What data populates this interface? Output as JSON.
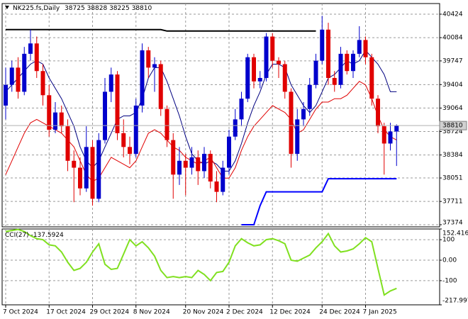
{
  "chart_data": [
    {
      "type": "candlestick",
      "title": "NK225.fs,Daily",
      "categories": [
        "7 Oct 2024",
        null,
        null,
        null,
        null,
        null,
        null,
        "17 Oct 2024",
        null,
        null,
        null,
        null,
        null,
        null,
        "29 Oct 2024",
        null,
        null,
        null,
        null,
        null,
        null,
        "8 Nov 2024",
        null,
        null,
        null,
        null,
        null,
        null,
        null,
        "20 Nov 2024",
        null,
        null,
        null,
        null,
        null,
        null,
        "2 Dec 2024",
        null,
        null,
        null,
        null,
        null,
        null,
        "12 Dec 2024",
        null,
        null,
        null,
        null,
        null,
        null,
        null,
        "24 Dec 2024",
        null,
        null,
        null,
        null,
        null,
        null,
        "7 Jan 2025",
        null,
        null,
        null,
        null,
        null
      ],
      "open": [
        39100,
        39400,
        39650,
        39300,
        39850,
        40000,
        39600,
        39250,
        38750,
        39000,
        38800,
        38300,
        38200,
        37900,
        38500,
        37750,
        38600,
        39300,
        39550,
        38700,
        38500,
        38400,
        39100,
        39900,
        39650,
        39700,
        39050,
        38600,
        38100,
        38300,
        38200,
        38350,
        38150,
        38400,
        38000,
        37850,
        38200,
        38650,
        38900,
        39200,
        39800,
        39450,
        39500,
        40100,
        39750,
        39700,
        39300,
        38400,
        38900,
        39050,
        39400,
        39750,
        40200,
        39500,
        39400,
        39850,
        39600,
        39850,
        40050,
        39800,
        39200,
        38800,
        38550,
        38725
      ],
      "high": [
        39650,
        39750,
        39800,
        39950,
        40200,
        40100,
        39700,
        39400,
        39150,
        39100,
        38900,
        38450,
        38350,
        38800,
        38600,
        38700,
        39500,
        39650,
        39600,
        38900,
        38650,
        39200,
        40000,
        39950,
        39800,
        39750,
        39100,
        38700,
        38500,
        38400,
        38500,
        38450,
        38500,
        38450,
        38150,
        38300,
        38750,
        39050,
        39300,
        39850,
        39850,
        39600,
        40150,
        40150,
        39800,
        39750,
        39350,
        39050,
        39150,
        39500,
        39850,
        40400,
        40300,
        39600,
        39950,
        39900,
        39900,
        40250,
        40100,
        39850,
        39250,
        38850,
        38850,
        38828
      ],
      "low": [
        38900,
        39300,
        39200,
        39250,
        39750,
        39500,
        39100,
        38650,
        38700,
        38700,
        38150,
        37700,
        37800,
        37850,
        37650,
        37700,
        38550,
        39150,
        38600,
        38350,
        38250,
        38350,
        39000,
        39500,
        39300,
        38950,
        38500,
        37750,
        37950,
        37800,
        38100,
        37950,
        38050,
        37900,
        37700,
        37800,
        38100,
        38600,
        38800,
        39150,
        39350,
        39350,
        39450,
        39650,
        39500,
        39200,
        38200,
        38300,
        38800,
        38950,
        39350,
        39700,
        39400,
        39300,
        39350,
        39550,
        39500,
        39800,
        39700,
        39100,
        38700,
        38100,
        38450,
        38225
      ],
      "close": [
        39400,
        39650,
        39300,
        39850,
        40000,
        39600,
        39250,
        38750,
        39000,
        38800,
        38300,
        38200,
        37900,
        38500,
        37750,
        38600,
        39300,
        39550,
        38700,
        38500,
        38400,
        39100,
        39900,
        39650,
        39700,
        39050,
        38600,
        38100,
        38300,
        38200,
        38350,
        38150,
        38400,
        38000,
        37850,
        38200,
        38650,
        38900,
        39200,
        39800,
        39450,
        39500,
        40100,
        39750,
        39700,
        39300,
        38400,
        38900,
        39050,
        39400,
        39750,
        40200,
        39500,
        39400,
        39850,
        39600,
        39850,
        40050,
        39800,
        39200,
        38800,
        38550,
        38725,
        38810
      ],
      "up_color": "#0000cc",
      "down_color": "#e00000",
      "overlays": [
        {
          "color": "#000080",
          "width": 1,
          "values": [
            39300,
            39400,
            39500,
            39600,
            39700,
            39750,
            39700,
            39500,
            39350,
            39200,
            39000,
            38800,
            38500,
            38300,
            38200,
            38300,
            38500,
            38700,
            38900,
            38950,
            38950,
            39000,
            39200,
            39500,
            39650,
            39650,
            39450,
            39200,
            38950,
            38650,
            38400,
            38300,
            38250,
            38300,
            38250,
            38150,
            38150,
            38300,
            38550,
            38850,
            39100,
            39300,
            39550,
            39700,
            39700,
            39650,
            39400,
            39250,
            39100,
            39000,
            39100,
            39300,
            39500,
            39550,
            39650,
            39750,
            39700,
            39750,
            39900,
            39800,
            39700,
            39550,
            39300,
            39300
          ]
        },
        {
          "color": "#e00000",
          "width": 1,
          "values": [
            38100,
            38300,
            38500,
            38700,
            38850,
            38900,
            38850,
            38800,
            38750,
            38700,
            38600,
            38500,
            38300,
            38100,
            38000,
            38050,
            38200,
            38350,
            38300,
            38250,
            38200,
            38300,
            38500,
            38700,
            38750,
            38700,
            38600,
            38500,
            38450,
            38350,
            38300,
            38250,
            38300,
            38350,
            38200,
            38050,
            38050,
            38200,
            38450,
            38650,
            38800,
            38900,
            39000,
            39100,
            39050,
            39000,
            38900,
            38700,
            38750,
            38900,
            39050,
            39150,
            39150,
            39200,
            39200,
            39250,
            39350,
            39450,
            39400,
            39200,
            38950,
            38750,
            38650,
            38600
          ]
        },
        {
          "color": "#0000ff",
          "width": 2,
          "values": [
            null,
            null,
            null,
            null,
            null,
            null,
            null,
            null,
            null,
            null,
            null,
            null,
            null,
            null,
            null,
            null,
            null,
            null,
            null,
            null,
            null,
            null,
            null,
            null,
            null,
            null,
            null,
            null,
            null,
            null,
            null,
            null,
            null,
            null,
            null,
            null,
            null,
            null,
            37374,
            37374,
            37374,
            37650,
            37850,
            37850,
            37850,
            37850,
            37850,
            37850,
            37850,
            37850,
            37850,
            37850,
            38040,
            38040,
            38040,
            38040,
            38040,
            38040,
            38040,
            38040,
            38040,
            38040,
            38040,
            38040
          ]
        },
        {
          "color": "#000000",
          "width": 2,
          "values": [
            40200,
            40200,
            40200,
            40200,
            40200,
            40200,
            40200,
            40200,
            40200,
            40200,
            40200,
            40200,
            40200,
            40200,
            40200,
            40200,
            40200,
            40200,
            40200,
            40200,
            40200,
            40200,
            40200,
            40200,
            40200,
            40200,
            40180,
            40180,
            40180,
            40180,
            40180,
            40180,
            40180,
            40180,
            40180,
            40180,
            40180,
            40180,
            40180,
            40180,
            40180,
            40180,
            40180,
            40180,
            40180,
            40180,
            40180,
            40180,
            40180,
            40180,
            40180,
            null,
            null,
            null,
            null,
            null,
            null,
            null,
            null,
            null,
            null,
            null,
            null,
            null
          ]
        }
      ],
      "ylim": [
        37343,
        40578
      ],
      "yticks": [
        40424,
        40084,
        39747,
        39404,
        39064,
        38724,
        38384,
        38051,
        37711,
        37374
      ],
      "grid": true
    },
    {
      "type": "line",
      "title": "CCI(27)",
      "color": "#80e020",
      "values": [
        140,
        145,
        150,
        140,
        120,
        105,
        100,
        75,
        70,
        40,
        -10,
        -50,
        -40,
        -10,
        40,
        80,
        -20,
        -45,
        -40,
        30,
        100,
        70,
        90,
        60,
        20,
        -50,
        -85,
        -80,
        -85,
        -80,
        -85,
        -50,
        -70,
        -100,
        -60,
        -55,
        -10,
        70,
        105,
        85,
        70,
        75,
        100,
        105,
        95,
        80,
        0,
        -5,
        10,
        25,
        60,
        90,
        130,
        70,
        40,
        45,
        55,
        80,
        110,
        90,
        -40,
        -170,
        -150,
        -137.5924
      ],
      "ylim": [
        -217.997,
        152.416
      ],
      "yticks": [
        152.416,
        100,
        {
          "value": 0,
          "label": "0.00"
        },
        -100,
        -217.997
      ],
      "grid": true
    }
  ]
}
